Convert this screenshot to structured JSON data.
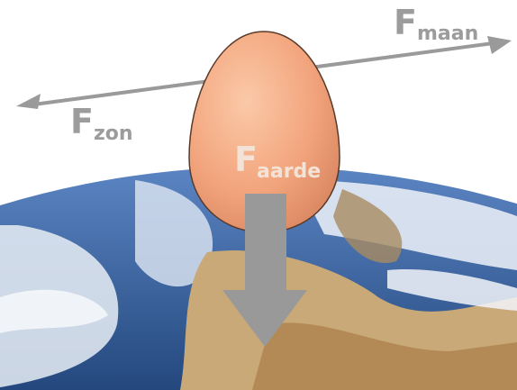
{
  "forces": [
    {
      "symbol": "F",
      "subscript": "maan"
    },
    {
      "symbol": "F",
      "subscript": "zon"
    },
    {
      "symbol": "F",
      "subscript": "aarde"
    }
  ]
}
